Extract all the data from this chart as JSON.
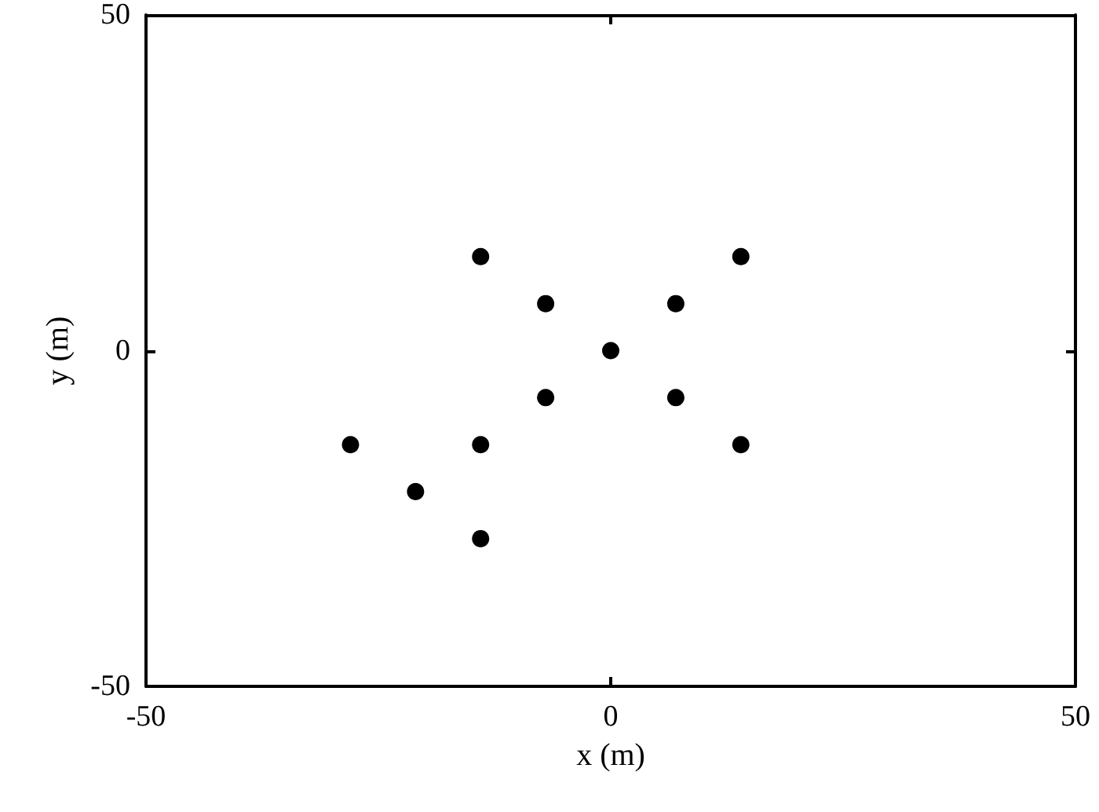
{
  "chart_data": {
    "type": "scatter",
    "xlabel": "x (m)",
    "ylabel": "y (m)",
    "x": [
      -14,
      -7,
      7,
      14,
      0,
      -7,
      7,
      14,
      -14,
      -28,
      -21,
      -14
    ],
    "values": [
      14,
      7,
      7,
      14,
      0,
      -7,
      -7,
      -14,
      -14,
      -14,
      -21,
      -28
    ],
    "color": "#000000",
    "marker": "circle",
    "xlim": [
      -50,
      50
    ],
    "ylim": [
      -50,
      50
    ],
    "xticks": [
      -50,
      0,
      50
    ],
    "yticks": [
      -50,
      0,
      50
    ],
    "grid": false
  }
}
